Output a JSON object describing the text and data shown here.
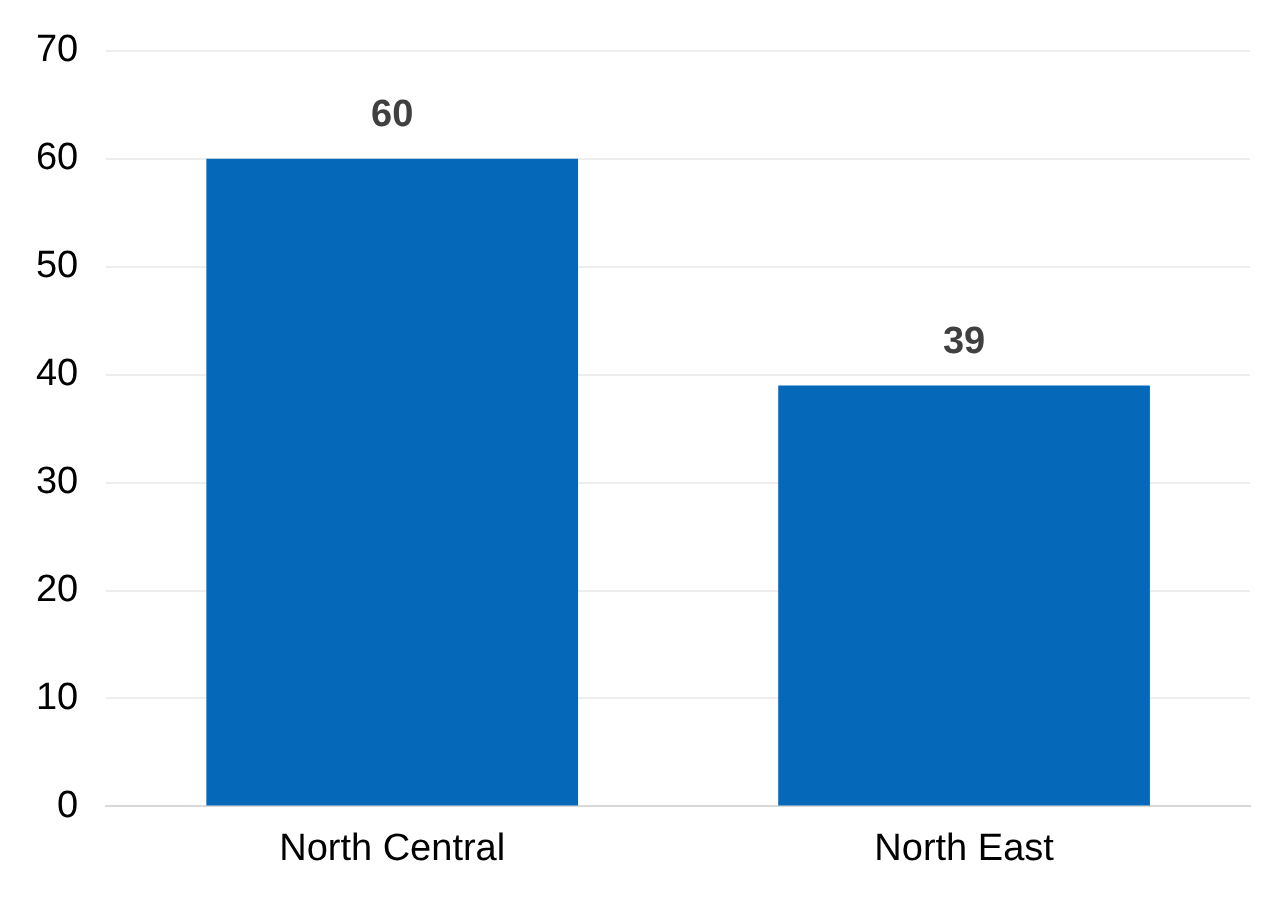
{
  "chart_data": {
    "type": "bar",
    "categories": [
      "North Central",
      "North East"
    ],
    "values": [
      60,
      39
    ],
    "color": "#0668b8",
    "ylim": [
      0,
      70
    ],
    "yticks": [
      0,
      10,
      20,
      30,
      40,
      50,
      60,
      70
    ],
    "grid": "y",
    "data_labels": true
  }
}
